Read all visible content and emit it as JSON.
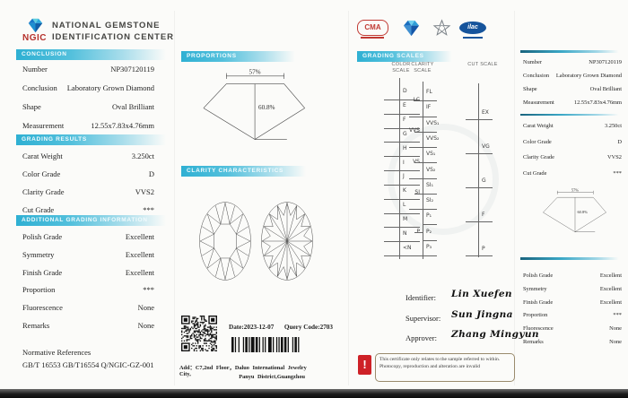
{
  "header": {
    "logo_text": "NGIC",
    "org_line1": "NATIONAL GEMSTONE",
    "org_line2": "IDENTIFICATION CENTER",
    "badges": {
      "cma": "CMA",
      "ilac": "ilac"
    }
  },
  "conclusion": {
    "title": "CONCLUSION",
    "fields": [
      {
        "label": "Number",
        "value": "NP307120119"
      },
      {
        "label": "Conclusion",
        "value": "Laboratory Grown Diamond"
      },
      {
        "label": "Shape",
        "value": "Oval Brilliant"
      },
      {
        "label": "Measurement",
        "value": "12.55x7.83x4.76mm"
      }
    ]
  },
  "grading_results": {
    "title": "GRADING RESULTS",
    "fields": [
      {
        "label": "Carat Weight",
        "value": "3.250ct"
      },
      {
        "label": "Color Grade",
        "value": "D"
      },
      {
        "label": "Clarity Grade",
        "value": "VVS2"
      },
      {
        "label": "Cut Grade",
        "value": "***"
      }
    ]
  },
  "additional": {
    "title": "ADDITIONAL GRADING INFORMATION",
    "fields": [
      {
        "label": "Polish Grade",
        "value": "Excellent"
      },
      {
        "label": "Symmetry",
        "value": "Excellent"
      },
      {
        "label": "Finish Grade",
        "value": "Excellent"
      },
      {
        "label": "Proportion",
        "value": "***"
      },
      {
        "label": "Fluorescence",
        "value": "None"
      },
      {
        "label": "Remarks",
        "value": "None"
      }
    ]
  },
  "normative": {
    "title": "Normative References",
    "refs": "GB/T 16553  GB/T16554  Q/NGIC-GZ-001"
  },
  "proportions": {
    "title": "PROPORTIONS",
    "table": "57%",
    "depth": "60.8%"
  },
  "clarity_chars": {
    "title": "CLARITY CHARACTERISTICS"
  },
  "grading_scales": {
    "title": "GRADING SCALES",
    "color": {
      "title": "COLOR SCALE",
      "items": [
        "D",
        "E",
        "F",
        "G",
        "H",
        "I",
        "J",
        "K",
        "L",
        "M",
        "N",
        "<N"
      ]
    },
    "clarity": {
      "title": "CLARITY SCALE",
      "groups": [
        {
          "name": "LC",
          "subs": [
            "FL",
            "IF"
          ]
        },
        {
          "name": "VVS",
          "subs": [
            "VVS₁",
            "VVS₂"
          ]
        },
        {
          "name": "VS",
          "subs": [
            "VS₁",
            "VS₂"
          ]
        },
        {
          "name": "SI",
          "subs": [
            "SI₁",
            "SI₂"
          ]
        },
        {
          "name": "P",
          "subs": [
            "P₁",
            "P₂",
            "P₃"
          ]
        }
      ]
    },
    "cut": {
      "title": "CUT SCALE",
      "items": [
        "EX",
        "VG",
        "G",
        "F",
        "P"
      ]
    }
  },
  "signatures": {
    "rows": [
      {
        "label": "Identifier:",
        "name": "Lin Xuefen"
      },
      {
        "label": "Supervisor:",
        "name": "Sun Jingna"
      },
      {
        "label": "Approver:",
        "name": "Zhang Mingyun"
      }
    ]
  },
  "footer": {
    "date": "Date:2023-12-07",
    "query": "Query Code:2703",
    "address_label": "Add：",
    "address_line1": "C7,2nd Floor，Daluo International Jewelry City,",
    "address_line2": "Panyu District,Guangzhou"
  },
  "warning": {
    "icon": "!",
    "text": "This certificate only relates to the sample referred to within. Photocopy, reproduction and alteration are invalid"
  }
}
